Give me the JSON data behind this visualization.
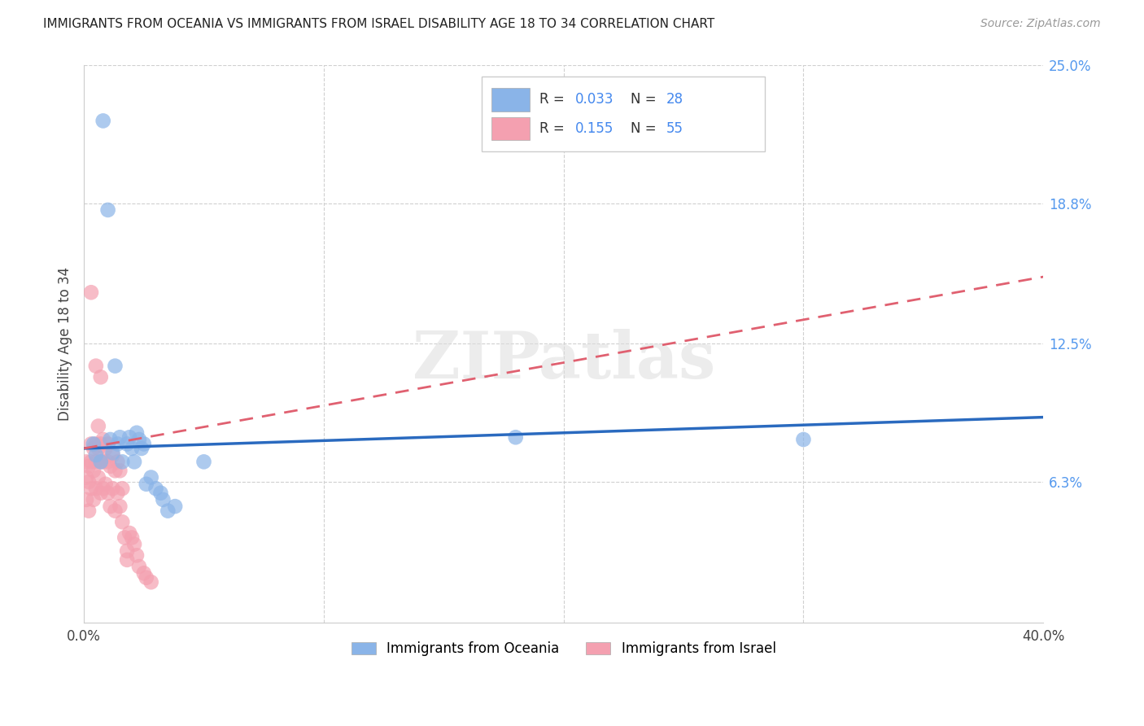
{
  "title": "IMMIGRANTS FROM OCEANIA VS IMMIGRANTS FROM ISRAEL DISABILITY AGE 18 TO 34 CORRELATION CHART",
  "source": "Source: ZipAtlas.com",
  "ylabel": "Disability Age 18 to 34",
  "xlim": [
    0.0,
    0.4
  ],
  "ylim": [
    0.0,
    0.25
  ],
  "xtick_labels": [
    "0.0%",
    "",
    "",
    "",
    "40.0%"
  ],
  "xtick_values": [
    0.0,
    0.1,
    0.2,
    0.3,
    0.4
  ],
  "ytick_right_labels": [
    "25.0%",
    "18.8%",
    "12.5%",
    "6.3%"
  ],
  "ytick_right_values": [
    0.25,
    0.188,
    0.125,
    0.063
  ],
  "legend_label1": "Immigrants from Oceania",
  "legend_label2": "Immigrants from Israel",
  "color_oceania": "#8ab4e8",
  "color_israel": "#f4a0b0",
  "color_line_oceania": "#2a6abf",
  "color_line_israel": "#e06070",
  "watermark": "ZIPatlas",
  "oceania_x": [
    0.004,
    0.005,
    0.007,
    0.008,
    0.01,
    0.011,
    0.012,
    0.013,
    0.014,
    0.015,
    0.016,
    0.018,
    0.019,
    0.02,
    0.021,
    0.022,
    0.023,
    0.024,
    0.025,
    0.026,
    0.028,
    0.03,
    0.032,
    0.033,
    0.035,
    0.038,
    0.05,
    0.18,
    0.3
  ],
  "oceania_y": [
    0.08,
    0.075,
    0.072,
    0.225,
    0.185,
    0.082,
    0.076,
    0.115,
    0.08,
    0.083,
    0.072,
    0.08,
    0.083,
    0.078,
    0.072,
    0.085,
    0.082,
    0.078,
    0.08,
    0.062,
    0.065,
    0.06,
    0.058,
    0.055,
    0.05,
    0.052,
    0.072,
    0.083,
    0.082
  ],
  "israel_x": [
    0.001,
    0.001,
    0.001,
    0.002,
    0.002,
    0.002,
    0.003,
    0.003,
    0.003,
    0.003,
    0.004,
    0.004,
    0.004,
    0.005,
    0.005,
    0.005,
    0.005,
    0.006,
    0.006,
    0.006,
    0.007,
    0.007,
    0.007,
    0.007,
    0.008,
    0.008,
    0.008,
    0.009,
    0.009,
    0.01,
    0.01,
    0.01,
    0.011,
    0.011,
    0.012,
    0.012,
    0.013,
    0.013,
    0.014,
    0.014,
    0.015,
    0.015,
    0.016,
    0.016,
    0.017,
    0.018,
    0.018,
    0.019,
    0.02,
    0.021,
    0.022,
    0.023,
    0.025,
    0.026,
    0.028
  ],
  "israel_y": [
    0.072,
    0.065,
    0.055,
    0.07,
    0.063,
    0.05,
    0.148,
    0.08,
    0.072,
    0.06,
    0.078,
    0.068,
    0.055,
    0.115,
    0.08,
    0.072,
    0.06,
    0.088,
    0.078,
    0.065,
    0.11,
    0.08,
    0.072,
    0.058,
    0.082,
    0.072,
    0.06,
    0.078,
    0.062,
    0.08,
    0.072,
    0.058,
    0.07,
    0.052,
    0.075,
    0.06,
    0.068,
    0.05,
    0.072,
    0.058,
    0.068,
    0.052,
    0.06,
    0.045,
    0.038,
    0.032,
    0.028,
    0.04,
    0.038,
    0.035,
    0.03,
    0.025,
    0.022,
    0.02,
    0.018
  ],
  "oceania_trendline_x": [
    0.0,
    0.4
  ],
  "oceania_trendline_y": [
    0.078,
    0.092
  ],
  "israel_trendline_x": [
    0.0,
    0.4
  ],
  "israel_trendline_y": [
    0.078,
    0.155
  ]
}
